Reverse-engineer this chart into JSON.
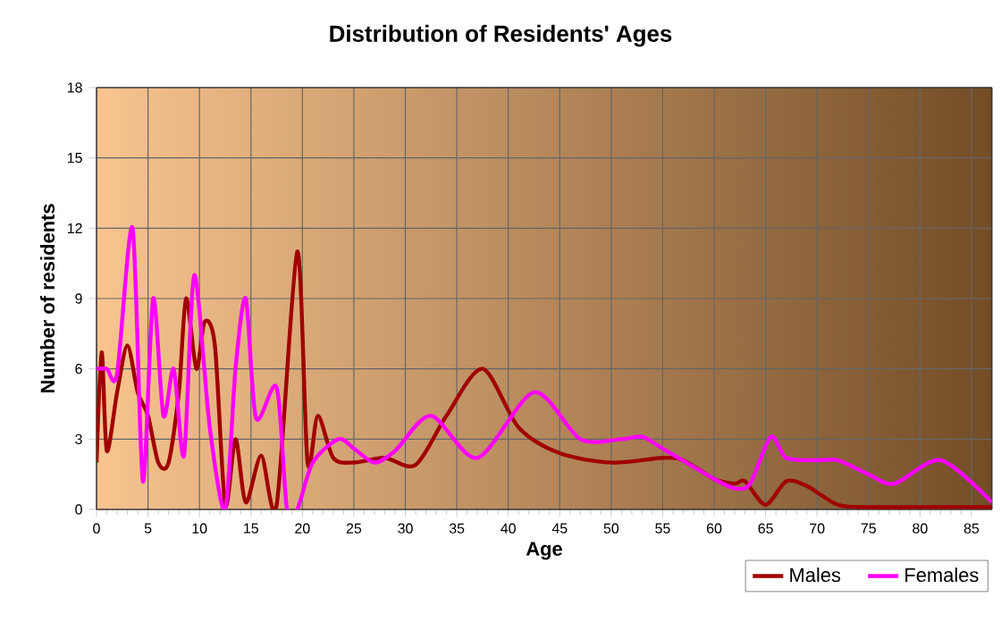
{
  "chart_data": {
    "type": "line",
    "title": "Distribution of Residents' Ages",
    "xlabel": "Age",
    "ylabel": "Number of residents",
    "xlim": [
      0,
      87
    ],
    "ylim": [
      0,
      18
    ],
    "xticks": [
      0,
      5,
      10,
      15,
      20,
      25,
      30,
      35,
      40,
      45,
      50,
      55,
      60,
      65,
      70,
      75,
      80,
      85
    ],
    "yticks": [
      0,
      3,
      6,
      9,
      12,
      15,
      18
    ],
    "grid": true,
    "legend": "bottom right",
    "series": [
      {
        "name": "Males",
        "color": "#a00000",
        "x": [
          0,
          0.5,
          1,
          2,
          3,
          4,
          5,
          6,
          7,
          8,
          8.7,
          9.7,
          10.5,
          11.5,
          12.5,
          13.5,
          14.5,
          16,
          17.5,
          19.5,
          20.5,
          21.5,
          23,
          25,
          28,
          31,
          34,
          37.5,
          41,
          45,
          50,
          55,
          57,
          60,
          62,
          63,
          65,
          67,
          69,
          72,
          75,
          80,
          87
        ],
        "values": [
          2,
          6.7,
          2.5,
          5,
          7,
          5,
          4,
          2,
          2,
          5,
          9,
          6,
          8,
          7,
          0.2,
          3,
          0.3,
          2.3,
          0.2,
          11,
          2,
          4,
          2.2,
          2,
          2.2,
          1.9,
          4,
          6,
          3.5,
          2.4,
          2,
          2.2,
          2.1,
          1.3,
          1.1,
          1.2,
          0.2,
          1.2,
          1,
          0.2,
          0.1,
          0.1,
          0.1
        ]
      },
      {
        "name": "Females",
        "color": "#ff00ff",
        "x": [
          0,
          1,
          2,
          3.5,
          4.5,
          5.5,
          6.5,
          7.5,
          8.5,
          9.5,
          11,
          12.5,
          13.5,
          14.5,
          15.5,
          17.5,
          18.5,
          19.5,
          21,
          23.5,
          25,
          27,
          29,
          32.5,
          37,
          42.5,
          47,
          51,
          53,
          55,
          60,
          62,
          63.5,
          65.5,
          67,
          70,
          72,
          75,
          77.5,
          82,
          87
        ],
        "values": [
          6,
          6,
          5.8,
          12,
          1.2,
          9,
          4,
          6,
          2.3,
          10,
          3.5,
          0,
          6,
          9,
          3.9,
          5.2,
          0,
          0,
          2,
          3,
          2.6,
          2,
          2.5,
          4,
          2.2,
          5,
          3,
          3,
          3.1,
          2.6,
          1.3,
          0.9,
          1.1,
          3.1,
          2.2,
          2.1,
          2.1,
          1.5,
          1.1,
          2.1,
          0.3
        ]
      }
    ]
  }
}
